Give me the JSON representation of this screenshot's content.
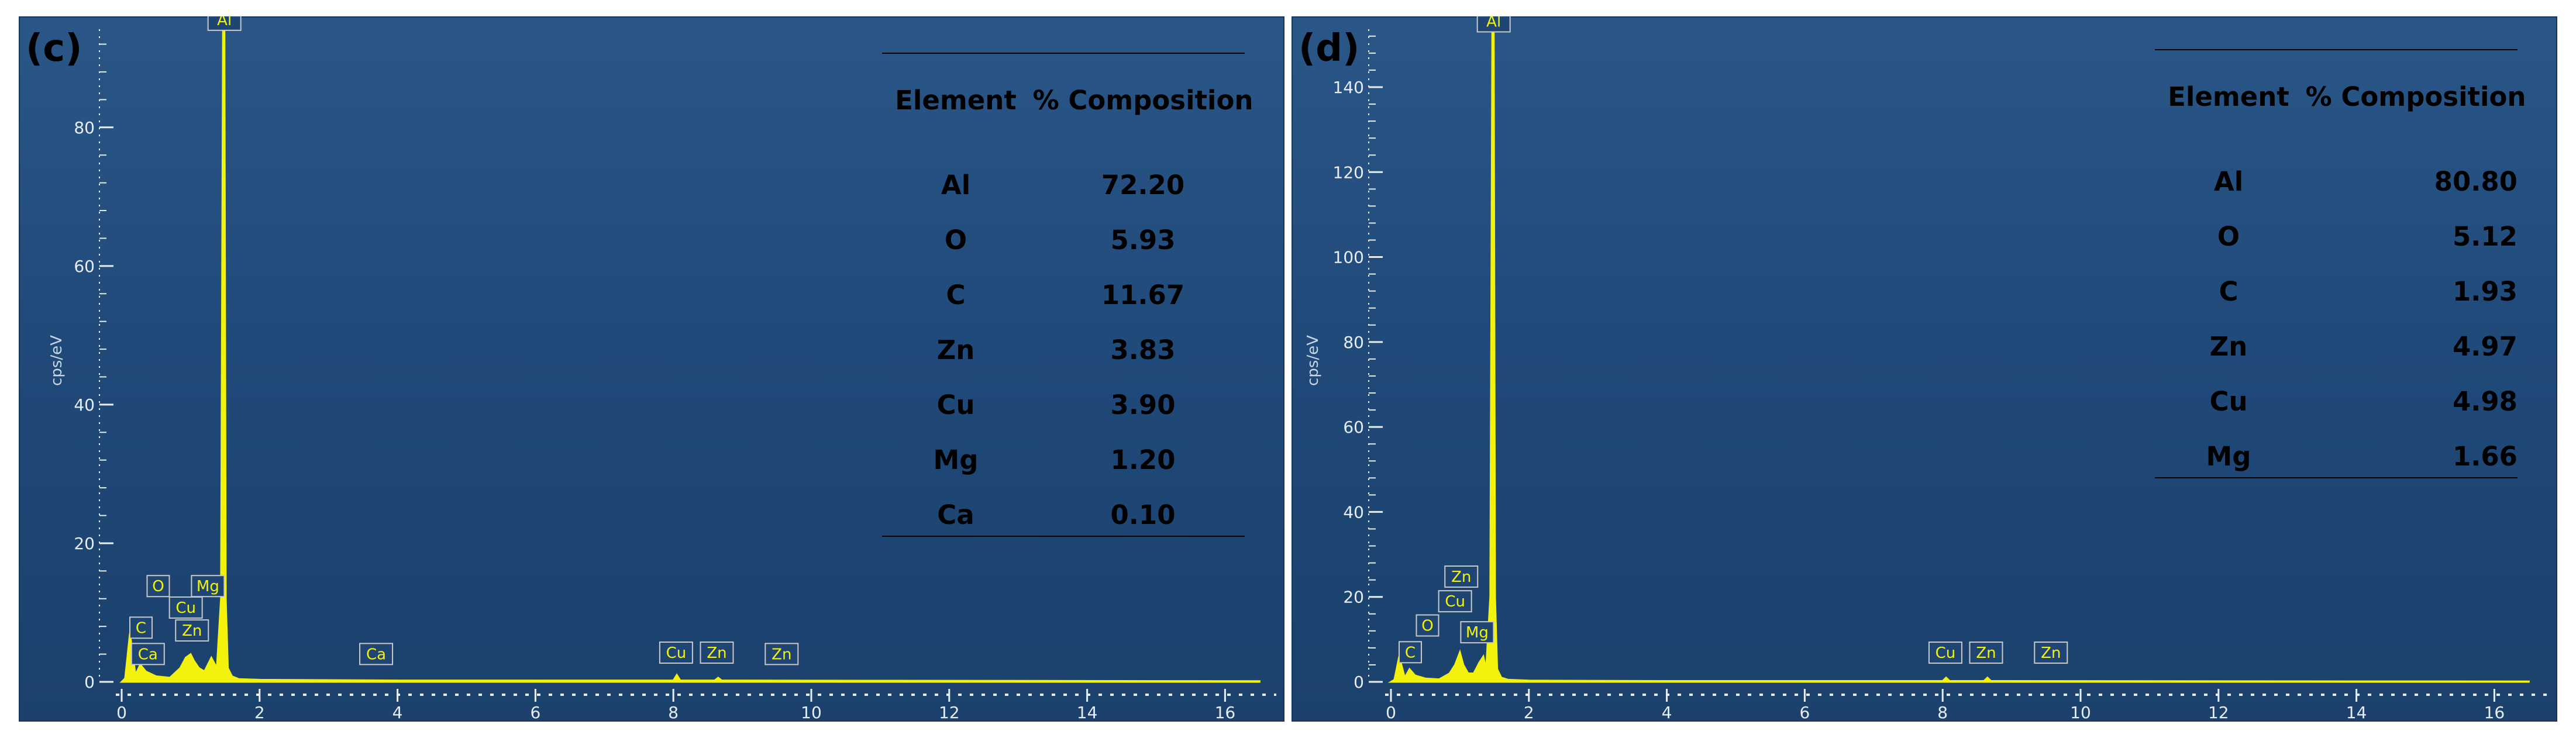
{
  "chart_data": [
    {
      "panel_label": "(c)",
      "type": "line",
      "ylabel": "cps/eV",
      "xlim": [
        0,
        16.5
      ],
      "ylim": [
        0,
        95
      ],
      "xticks": [
        0,
        2,
        4,
        6,
        8,
        10,
        12,
        14,
        16
      ],
      "yticks": [
        0,
        20,
        40,
        60,
        80
      ],
      "series": [
        {
          "x": [
            0.0,
            0.05,
            0.12,
            0.2,
            0.27,
            0.35,
            0.5,
            0.7,
            0.85,
            0.93,
            1.0,
            1.05,
            1.12,
            1.2,
            1.3,
            1.38,
            1.44,
            1.47,
            1.49,
            1.51,
            1.54,
            1.6,
            1.7,
            2.0,
            4.0,
            8.0,
            8.05,
            8.1,
            8.6,
            8.65,
            8.7,
            16.5
          ],
          "y": [
            0,
            0.5,
            7,
            1,
            2.5,
            1.5,
            0.8,
            0.6,
            2,
            3.5,
            4,
            3,
            2,
            1.5,
            3.5,
            2,
            12,
            95,
            95,
            12,
            2,
            0.8,
            0.4,
            0.3,
            0.2,
            0.2,
            1,
            0.2,
            0.2,
            0.6,
            0.2,
            0.1
          ]
        }
      ],
      "peak_labels": [
        {
          "label": "Al",
          "x": 1.49,
          "y": 94
        },
        {
          "label": "O",
          "x": 0.53,
          "y": 12.3
        },
        {
          "label": "Mg",
          "x": 1.25,
          "y": 12.3
        },
        {
          "label": "Cu",
          "x": 0.93,
          "y": 9.2
        },
        {
          "label": "C",
          "x": 0.28,
          "y": 6.3
        },
        {
          "label": "Zn",
          "x": 1.02,
          "y": 5.9
        },
        {
          "label": "Ca",
          "x": 0.38,
          "y": 2.5
        },
        {
          "label": "Ca",
          "x": 3.69,
          "y": 2.5
        },
        {
          "label": "Cu",
          "x": 8.04,
          "y": 2.7
        },
        {
          "label": "Zn",
          "x": 8.63,
          "y": 2.7
        },
        {
          "label": "Zn",
          "x": 9.57,
          "y": 2.5
        }
      ],
      "table": {
        "headers": [
          "Element",
          "% Composition"
        ],
        "rows": [
          [
            "Al",
            "72.20"
          ],
          [
            "O",
            "5.93"
          ],
          [
            "C",
            "11.67"
          ],
          [
            "Zn",
            "3.83"
          ],
          [
            "Cu",
            "3.90"
          ],
          [
            "Mg",
            "1.20"
          ],
          [
            "Ca",
            "0.10"
          ]
        ]
      }
    },
    {
      "panel_label": "(d)",
      "type": "line",
      "ylabel": "cps/eV",
      "xlim": [
        0,
        16.5
      ],
      "ylim": [
        0,
        155
      ],
      "xticks": [
        0,
        2,
        4,
        6,
        8,
        10,
        12,
        14,
        16
      ],
      "yticks": [
        0,
        20,
        40,
        60,
        80,
        100,
        120,
        140
      ],
      "series": [
        {
          "x": [
            0.0,
            0.05,
            0.12,
            0.2,
            0.27,
            0.35,
            0.5,
            0.7,
            0.85,
            0.93,
            1.0,
            1.05,
            1.12,
            1.2,
            1.28,
            1.34,
            1.38,
            1.44,
            1.47,
            1.49,
            1.51,
            1.54,
            1.6,
            1.7,
            2.0,
            4.0,
            8.0,
            8.05,
            8.1,
            8.6,
            8.65,
            8.7,
            16.5
          ],
          "y": [
            0,
            0.5,
            6,
            1,
            3,
            1.5,
            0.8,
            0.6,
            2,
            4,
            7,
            4,
            2,
            2,
            4.5,
            6,
            3,
            20,
            155,
            155,
            20,
            3,
            1,
            0.5,
            0.3,
            0.2,
            0.2,
            1,
            0.2,
            0.2,
            1,
            0.2,
            0.1
          ]
        }
      ],
      "peak_labels": [
        {
          "label": "Al",
          "x": 1.49,
          "y": 153
        },
        {
          "label": "Zn",
          "x": 1.02,
          "y": 22.3
        },
        {
          "label": "Cu",
          "x": 0.93,
          "y": 16.5
        },
        {
          "label": "O",
          "x": 0.53,
          "y": 10.8
        },
        {
          "label": "Mg",
          "x": 1.25,
          "y": 9.2
        },
        {
          "label": "C",
          "x": 0.28,
          "y": 4.5
        },
        {
          "label": "Cu",
          "x": 8.04,
          "y": 4.4
        },
        {
          "label": "Zn",
          "x": 8.63,
          "y": 4.4
        },
        {
          "label": "Zn",
          "x": 9.57,
          "y": 4.4
        }
      ],
      "table": {
        "headers": [
          "Element",
          "% Composition"
        ],
        "rows": [
          [
            "Al",
            "80.80"
          ],
          [
            "O",
            "5.12"
          ],
          [
            "C",
            "1.93"
          ],
          [
            "Zn",
            "4.97"
          ],
          [
            "Cu",
            "4.98"
          ],
          [
            "Mg",
            "1.66"
          ]
        ]
      }
    }
  ],
  "colors": {
    "background_top": "#2a5788",
    "background_bottom": "#1b416c",
    "spectrum": "#f2f20c",
    "tick": "#e6edf5",
    "peak_label_border": "#c9c9c9",
    "table_text": "#000000"
  }
}
